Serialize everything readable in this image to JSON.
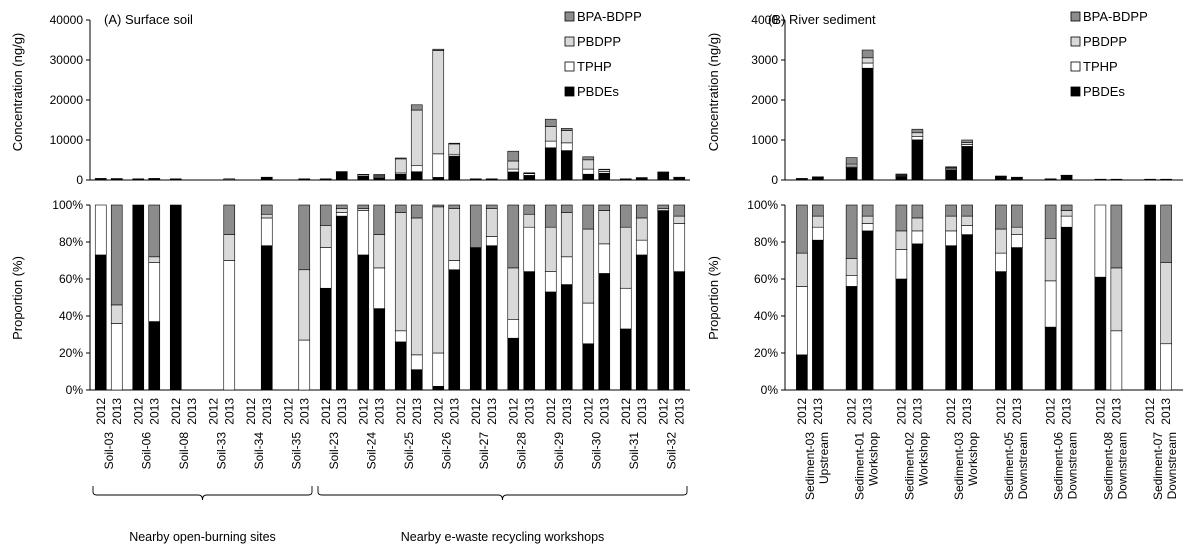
{
  "legend": [
    {
      "key": "bpa",
      "label": "BPA-BDPP",
      "color": "#8c8c8c"
    },
    {
      "key": "pbdpp",
      "label": "PBDPP",
      "color": "#d9d9d9"
    },
    {
      "key": "tphp",
      "label": "TPHP",
      "color": "#ffffff"
    },
    {
      "key": "pbde",
      "label": "PBDEs",
      "color": "#000000"
    }
  ],
  "chart_data": [
    {
      "type": "bar",
      "panel": "A",
      "title": "(A) Surface soil",
      "stacked": true,
      "top": {
        "ylabel": "Concentration (ng/g)",
        "ylim": [
          0,
          40000
        ],
        "yticks": [
          "0",
          "10000",
          "20000",
          "30000",
          "40000"
        ]
      },
      "bottom": {
        "ylabel": "Proportion (%)",
        "ylim": [
          0,
          100
        ],
        "yticks": [
          "0%",
          "20%",
          "40%",
          "60%",
          "80%",
          "100%"
        ]
      },
      "years": [
        "2012",
        "2013"
      ],
      "sites": [
        "Soil-03",
        "Soil-06",
        "Soil-08",
        "Soil-33",
        "Soil-34",
        "Soil-35",
        "Soil-23",
        "Soil-24",
        "Soil-25",
        "Soil-26",
        "Soil-27",
        "Soil-28",
        "Soil-29",
        "Soil-30",
        "Soil-31",
        "Soil-32"
      ],
      "groups": [
        {
          "label": "Nearby open-burning sites",
          "from": 0,
          "to": 5
        },
        {
          "label": "Nearby e-waste recycling workshops",
          "from": 6,
          "to": 15
        }
      ],
      "samples": [
        {
          "site": 0,
          "year": "2012",
          "total": 400,
          "pbde": 73,
          "tphp": 27,
          "pbdpp": 0,
          "bpa": 0
        },
        {
          "site": 0,
          "year": "2013",
          "total": 400,
          "pbde": 0,
          "tphp": 36,
          "pbdpp": 10,
          "bpa": 54
        },
        {
          "site": 1,
          "year": "2012",
          "total": 300,
          "pbde": 100,
          "tphp": 0,
          "pbdpp": 0,
          "bpa": 0
        },
        {
          "site": 1,
          "year": "2013",
          "total": 400,
          "pbde": 37,
          "tphp": 32,
          "pbdpp": 3,
          "bpa": 28
        },
        {
          "site": 2,
          "year": "2012",
          "total": 300,
          "pbde": 100,
          "tphp": 0,
          "pbdpp": 0,
          "bpa": 0
        },
        {
          "site": 3,
          "year": "2013",
          "total": 300,
          "pbde": 0,
          "tphp": 70,
          "pbdpp": 14,
          "bpa": 16
        },
        {
          "site": 4,
          "year": "2013",
          "total": 700,
          "pbde": 78,
          "tphp": 15,
          "pbdpp": 2,
          "bpa": 5
        },
        {
          "site": 5,
          "year": "2013",
          "total": 300,
          "pbde": 0,
          "tphp": 27,
          "pbdpp": 38,
          "bpa": 35
        },
        {
          "site": 6,
          "year": "2012",
          "total": 300,
          "pbde": 55,
          "tphp": 22,
          "pbdpp": 12,
          "bpa": 11
        },
        {
          "site": 6,
          "year": "2013",
          "total": 2100,
          "pbde": 94,
          "tphp": 2,
          "pbdpp": 2,
          "bpa": 2
        },
        {
          "site": 7,
          "year": "2012",
          "total": 1400,
          "pbde": 73,
          "tphp": 24,
          "pbdpp": 1,
          "bpa": 2
        },
        {
          "site": 7,
          "year": "2013",
          "total": 1400,
          "pbde": 44,
          "tphp": 22,
          "pbdpp": 18,
          "bpa": 16
        },
        {
          "site": 8,
          "year": "2012",
          "total": 5500,
          "pbde": 26,
          "tphp": 6,
          "pbdpp": 64,
          "bpa": 4
        },
        {
          "site": 8,
          "year": "2013",
          "total": 18800,
          "pbde": 11,
          "tphp": 8,
          "pbdpp": 74,
          "bpa": 7
        },
        {
          "site": 9,
          "year": "2012",
          "total": 32700,
          "pbde": 2,
          "tphp": 18,
          "pbdpp": 79,
          "bpa": 1
        },
        {
          "site": 9,
          "year": "2013",
          "total": 9200,
          "pbde": 65,
          "tphp": 5,
          "pbdpp": 28,
          "bpa": 2
        },
        {
          "site": 10,
          "year": "2012",
          "total": 300,
          "pbde": 77,
          "tphp": 0,
          "pbdpp": 0,
          "bpa": 23
        },
        {
          "site": 10,
          "year": "2013",
          "total": 300,
          "pbde": 78,
          "tphp": 5,
          "pbdpp": 15,
          "bpa": 2
        },
        {
          "site": 11,
          "year": "2012",
          "total": 7200,
          "pbde": 28,
          "tphp": 10,
          "pbdpp": 28,
          "bpa": 34
        },
        {
          "site": 11,
          "year": "2013",
          "total": 1800,
          "pbde": 64,
          "tphp": 24,
          "pbdpp": 7,
          "bpa": 5
        },
        {
          "site": 12,
          "year": "2012",
          "total": 15200,
          "pbde": 53,
          "tphp": 11,
          "pbdpp": 24,
          "bpa": 12
        },
        {
          "site": 12,
          "year": "2013",
          "total": 12900,
          "pbde": 57,
          "tphp": 15,
          "pbdpp": 24,
          "bpa": 4
        },
        {
          "site": 13,
          "year": "2012",
          "total": 5800,
          "pbde": 25,
          "tphp": 22,
          "pbdpp": 40,
          "bpa": 13
        },
        {
          "site": 13,
          "year": "2013",
          "total": 2700,
          "pbde": 63,
          "tphp": 16,
          "pbdpp": 18,
          "bpa": 3
        },
        {
          "site": 14,
          "year": "2012",
          "total": 300,
          "pbde": 33,
          "tphp": 22,
          "pbdpp": 33,
          "bpa": 12
        },
        {
          "site": 14,
          "year": "2013",
          "total": 600,
          "pbde": 73,
          "tphp": 8,
          "pbdpp": 12,
          "bpa": 7
        },
        {
          "site": 15,
          "year": "2012",
          "total": 2000,
          "pbde": 97,
          "tphp": 0,
          "pbdpp": 1,
          "bpa": 2
        },
        {
          "site": 15,
          "year": "2013",
          "total": 700,
          "pbde": 64,
          "tphp": 26,
          "pbdpp": 4,
          "bpa": 6
        }
      ]
    },
    {
      "type": "bar",
      "panel": "B",
      "title": "(B) River sediment",
      "stacked": true,
      "top": {
        "ylabel": "Concentration (ng/g)",
        "ylim": [
          0,
          4000
        ],
        "yticks": [
          "0",
          "1000",
          "2000",
          "3000",
          "4000"
        ]
      },
      "bottom": {
        "ylabel": "Proportion (%)",
        "ylim": [
          0,
          100
        ],
        "yticks": [
          "0%",
          "20%",
          "40%",
          "60%",
          "80%",
          "100%"
        ]
      },
      "years": [
        "2012",
        "2013"
      ],
      "sites": [
        "Sediment-03",
        "Sediment-01",
        "Sediment-02",
        "Sediment-03",
        "Sediment-05",
        "Sediment-06",
        "Sediment-08",
        "Sediment-07"
      ],
      "site_locations": [
        "Upstream",
        "Workshop",
        "Workshop",
        "Workshop",
        "Downstream",
        "Downstream",
        "Downstream",
        "Downstream"
      ],
      "samples": [
        {
          "site": 0,
          "year": "2012",
          "total": 40,
          "pbde": 19,
          "tphp": 37,
          "pbdpp": 18,
          "bpa": 26
        },
        {
          "site": 0,
          "year": "2013",
          "total": 80,
          "pbde": 81,
          "tphp": 7,
          "pbdpp": 6,
          "bpa": 6
        },
        {
          "site": 1,
          "year": "2012",
          "total": 560,
          "pbde": 56,
          "tphp": 6,
          "pbdpp": 9,
          "bpa": 29
        },
        {
          "site": 1,
          "year": "2013",
          "total": 3250,
          "pbde": 86,
          "tphp": 4,
          "pbdpp": 4,
          "bpa": 6
        },
        {
          "site": 2,
          "year": "2012",
          "total": 150,
          "pbde": 60,
          "tphp": 16,
          "pbdpp": 10,
          "bpa": 14
        },
        {
          "site": 2,
          "year": "2013",
          "total": 1270,
          "pbde": 79,
          "tphp": 7,
          "pbdpp": 7,
          "bpa": 7
        },
        {
          "site": 3,
          "year": "2012",
          "total": 330,
          "pbde": 78,
          "tphp": 8,
          "pbdpp": 8,
          "bpa": 6
        },
        {
          "site": 3,
          "year": "2013",
          "total": 1000,
          "pbde": 84,
          "tphp": 5,
          "pbdpp": 5,
          "bpa": 6
        },
        {
          "site": 4,
          "year": "2012",
          "total": 100,
          "pbde": 64,
          "tphp": 10,
          "pbdpp": 13,
          "bpa": 13
        },
        {
          "site": 4,
          "year": "2013",
          "total": 70,
          "pbde": 77,
          "tphp": 7,
          "pbdpp": 4,
          "bpa": 12
        },
        {
          "site": 5,
          "year": "2012",
          "total": 30,
          "pbde": 34,
          "tphp": 25,
          "pbdpp": 23,
          "bpa": 18
        },
        {
          "site": 5,
          "year": "2013",
          "total": 120,
          "pbde": 88,
          "tphp": 6,
          "pbdpp": 3,
          "bpa": 3
        },
        {
          "site": 6,
          "year": "2012",
          "total": 20,
          "pbde": 61,
          "tphp": 39,
          "pbdpp": 0,
          "bpa": 0
        },
        {
          "site": 6,
          "year": "2013",
          "total": 20,
          "pbde": 0,
          "tphp": 32,
          "pbdpp": 34,
          "bpa": 34
        },
        {
          "site": 7,
          "year": "2012",
          "total": 20,
          "pbde": 100,
          "tphp": 0,
          "pbdpp": 0,
          "bpa": 0
        },
        {
          "site": 7,
          "year": "2013",
          "total": 20,
          "pbde": 0,
          "tphp": 25,
          "pbdpp": 44,
          "bpa": 31
        }
      ]
    }
  ]
}
